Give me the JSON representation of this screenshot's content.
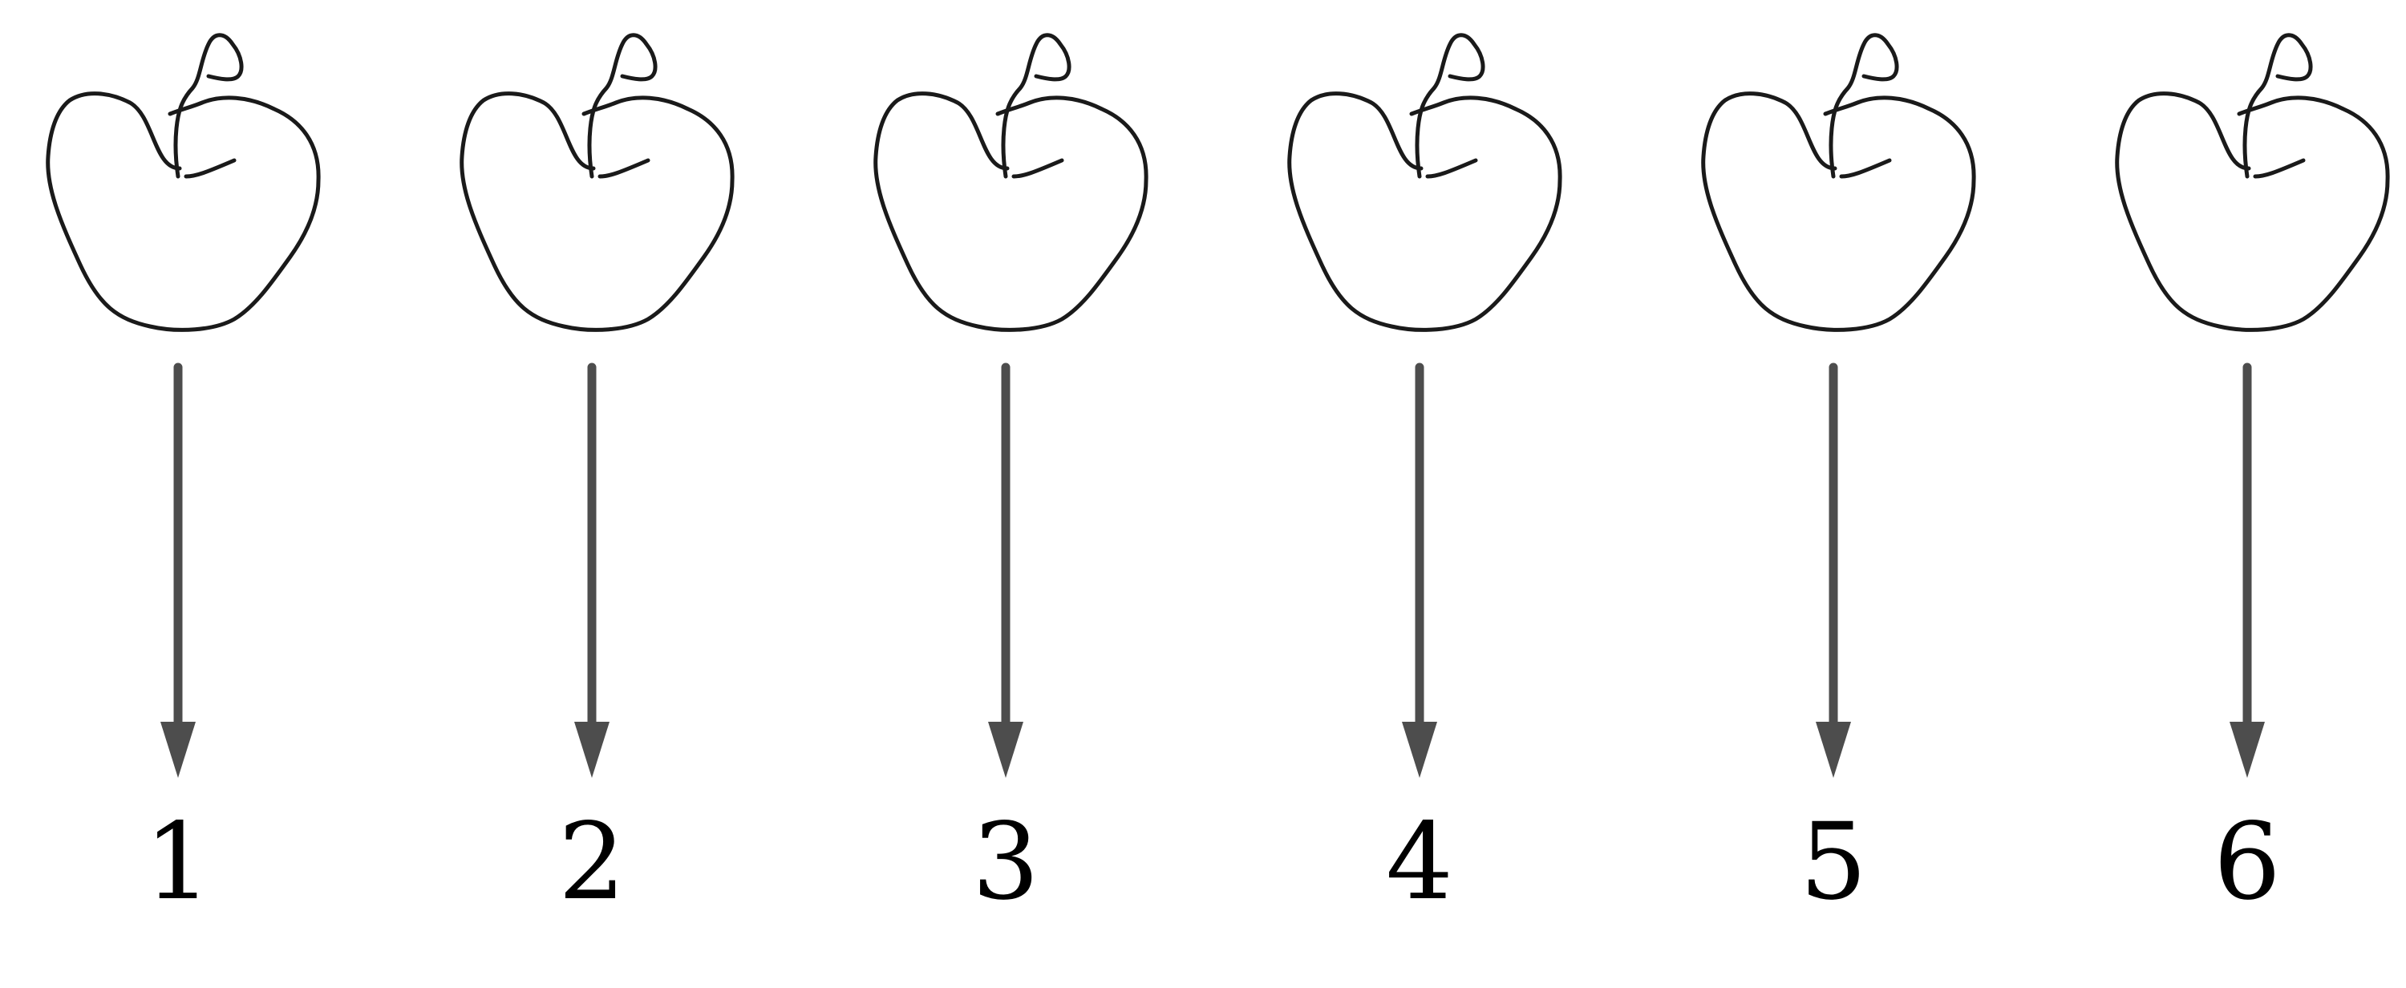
{
  "diagram": {
    "icon": "apple-icon",
    "colors": {
      "outline": "#1a1a1a",
      "arrow": "#4d4d4d",
      "label": "#000000",
      "background": "#ffffff"
    },
    "items": [
      {
        "label": "1"
      },
      {
        "label": "2"
      },
      {
        "label": "3"
      },
      {
        "label": "4"
      },
      {
        "label": "5"
      },
      {
        "label": "6"
      }
    ]
  }
}
